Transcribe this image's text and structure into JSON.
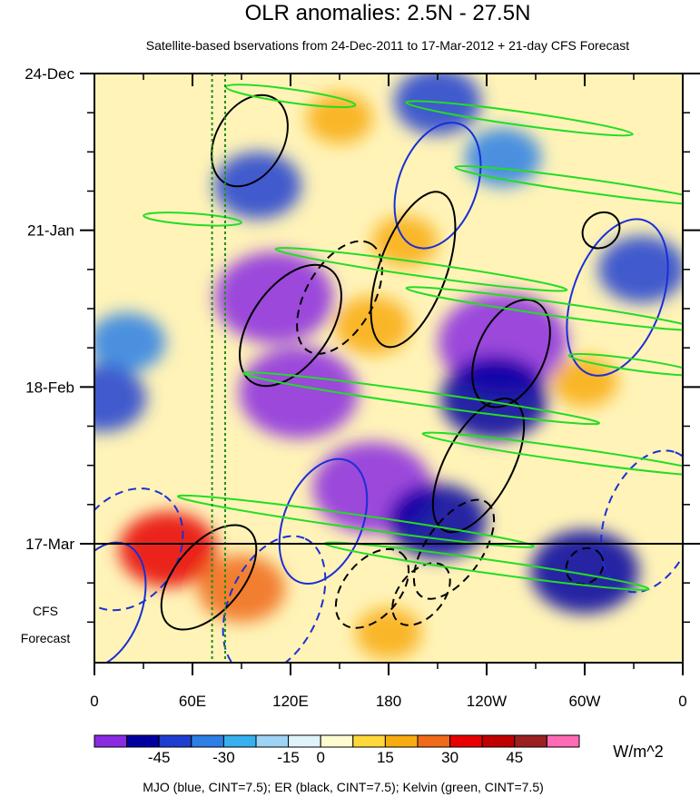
{
  "chart_data": {
    "type": "heatmap",
    "title": "OLR anomalies: 2.5N - 27.5N",
    "subtitle": "Satellite-based bservations from 24-Dec-2011 to 17-Mar-2012 + 21-day CFS Forecast",
    "x_ticks": [
      "0",
      "60E",
      "120E",
      "180",
      "120W",
      "60W",
      "0"
    ],
    "x_tick_lon": [
      0,
      60,
      120,
      180,
      240,
      300,
      360
    ],
    "y_ticks": [
      "24-Dec",
      "21-Jan",
      "18-Feb",
      "17-Mar"
    ],
    "y_tick_day": [
      0,
      28,
      56,
      84
    ],
    "forecast_label_line1": "CFS",
    "forecast_label_line2": "Forecast",
    "observation_end": "17-Mar",
    "total_days": 105,
    "colorbar": {
      "colors": [
        "#8a2be2",
        "#0000a0",
        "#1f3fd0",
        "#2b7fe6",
        "#36b0ee",
        "#9fd3f6",
        "#dff3fa",
        "#fffbd0",
        "#ffd93a",
        "#f8ac10",
        "#f06a1a",
        "#e80000",
        "#c00000",
        "#9c2020",
        "#ff6ab4"
      ],
      "labels": [
        "-45",
        "-30",
        "-15",
        "0",
        "15",
        "30",
        "45"
      ],
      "label_after_index": [
        1,
        3,
        5,
        6,
        8,
        10,
        12
      ],
      "units": "W/m^2"
    },
    "overlays": [
      {
        "name": "MJO",
        "color": "blue",
        "cint": 7.5
      },
      {
        "name": "ER",
        "color": "black",
        "cint": 7.5
      },
      {
        "name": "Kelvin",
        "color": "green",
        "cint": 7.5
      }
    ],
    "legend_text": "MJO (blue, CINT=7.5); ER (black, CINT=7.5); Kelvin (green, CINT=7.5)",
    "reference_lines_lon": [
      72,
      80
    ],
    "anomaly_features": [
      {
        "lon": 110,
        "day": 40,
        "value": -45
      },
      {
        "lon": 125,
        "day": 57,
        "value": -45
      },
      {
        "lon": 170,
        "day": 74,
        "value": -45
      },
      {
        "lon": 250,
        "day": 48,
        "value": -50
      },
      {
        "lon": 245,
        "day": 58,
        "value": -40
      },
      {
        "lon": 210,
        "day": 80,
        "value": -35
      },
      {
        "lon": 300,
        "day": 89,
        "value": -40
      },
      {
        "lon": 335,
        "day": 35,
        "value": -30
      },
      {
        "lon": 210,
        "day": 5,
        "value": -30
      },
      {
        "lon": 250,
        "day": 15,
        "value": -25
      },
      {
        "lon": 100,
        "day": 20,
        "value": -30
      },
      {
        "lon": 45,
        "day": 85,
        "value": 35
      },
      {
        "lon": 90,
        "day": 92,
        "value": 30
      },
      {
        "lon": 170,
        "day": 45,
        "value": 25
      },
      {
        "lon": 190,
        "day": 30,
        "value": 20
      },
      {
        "lon": 150,
        "day": 8,
        "value": 20
      },
      {
        "lon": 300,
        "day": 55,
        "value": 20
      },
      {
        "lon": 180,
        "day": 100,
        "value": 20
      },
      {
        "lon": 20,
        "day": 48,
        "value": -25
      },
      {
        "lon": 5,
        "day": 58,
        "value": -30
      }
    ],
    "mjo_contours": [
      {
        "lon": 20,
        "day": 85,
        "rx": 40,
        "ry": 9,
        "angle": -55,
        "dashed": true
      },
      {
        "lon": 110,
        "day": 95,
        "rx": 45,
        "ry": 8,
        "angle": -65,
        "dashed": true
      },
      {
        "lon": 210,
        "day": 20,
        "rx": 40,
        "ry": 7,
        "angle": -70,
        "dashed": false
      },
      {
        "lon": 320,
        "day": 40,
        "rx": 50,
        "ry": 8,
        "angle": -70,
        "dashed": false
      },
      {
        "lon": 340,
        "day": 80,
        "rx": 45,
        "ry": 8,
        "angle": -70,
        "dashed": true
      },
      {
        "lon": 140,
        "day": 80,
        "rx": 40,
        "ry": 7,
        "angle": -68,
        "dashed": false
      },
      {
        "lon": 5,
        "day": 95,
        "rx": 40,
        "ry": 7,
        "angle": -70,
        "dashed": false
      }
    ],
    "er_contours": [
      {
        "lon": 120,
        "day": 45,
        "rx": 42,
        "ry": 7,
        "angle": -55,
        "dashed": false
      },
      {
        "lon": 150,
        "day": 40,
        "rx": 38,
        "ry": 6,
        "angle": -60,
        "dashed": true
      },
      {
        "lon": 195,
        "day": 35,
        "rx": 50,
        "ry": 6,
        "angle": -70,
        "dashed": false
      },
      {
        "lon": 255,
        "day": 50,
        "rx": 35,
        "ry": 6,
        "angle": -65,
        "dashed": false
      },
      {
        "lon": 235,
        "day": 70,
        "rx": 45,
        "ry": 6,
        "angle": -62,
        "dashed": false
      },
      {
        "lon": 220,
        "day": 85,
        "rx": 35,
        "ry": 5,
        "angle": -55,
        "dashed": true
      },
      {
        "lon": 95,
        "day": 12,
        "rx": 30,
        "ry": 6,
        "angle": -60,
        "dashed": false
      },
      {
        "lon": 70,
        "day": 90,
        "rx": 38,
        "ry": 6,
        "angle": -50,
        "dashed": false
      },
      {
        "lon": 170,
        "day": 92,
        "rx": 28,
        "ry": 5,
        "angle": -50,
        "dashed": true
      },
      {
        "lon": 200,
        "day": 93,
        "rx": 22,
        "ry": 4,
        "angle": -50,
        "dashed": true
      },
      {
        "lon": 300,
        "day": 88,
        "rx": 12,
        "ry": 3,
        "angle": -40,
        "dashed": true
      },
      {
        "lon": 310,
        "day": 28,
        "rx": 12,
        "ry": 3,
        "angle": -40,
        "dashed": false
      }
    ],
    "kelvin_contours": [
      {
        "lon": 120,
        "day": 4,
        "rx": 40,
        "ry": 1.2,
        "angle": 8,
        "dashed": false
      },
      {
        "lon": 260,
        "day": 8,
        "rx": 70,
        "ry": 1.2,
        "angle": 8,
        "dashed": false
      },
      {
        "lon": 300,
        "day": 20,
        "rx": 80,
        "ry": 1.2,
        "angle": 8,
        "dashed": false
      },
      {
        "lon": 200,
        "day": 35,
        "rx": 90,
        "ry": 1.2,
        "angle": 8,
        "dashed": false
      },
      {
        "lon": 280,
        "day": 42,
        "rx": 90,
        "ry": 1.2,
        "angle": 8,
        "dashed": false
      },
      {
        "lon": 200,
        "day": 58,
        "rx": 110,
        "ry": 1.2,
        "angle": 8,
        "dashed": false
      },
      {
        "lon": 290,
        "day": 68,
        "rx": 90,
        "ry": 1.2,
        "angle": 8,
        "dashed": false
      },
      {
        "lon": 160,
        "day": 80,
        "rx": 110,
        "ry": 1.2,
        "angle": 8,
        "dashed": false
      },
      {
        "lon": 240,
        "day": 88,
        "rx": 100,
        "ry": 1.2,
        "angle": 8,
        "dashed": false
      },
      {
        "lon": 60,
        "day": 26,
        "rx": 30,
        "ry": 1,
        "angle": 4,
        "dashed": false
      },
      {
        "lon": 330,
        "day": 52,
        "rx": 40,
        "ry": 1,
        "angle": 8,
        "dashed": false
      }
    ]
  }
}
